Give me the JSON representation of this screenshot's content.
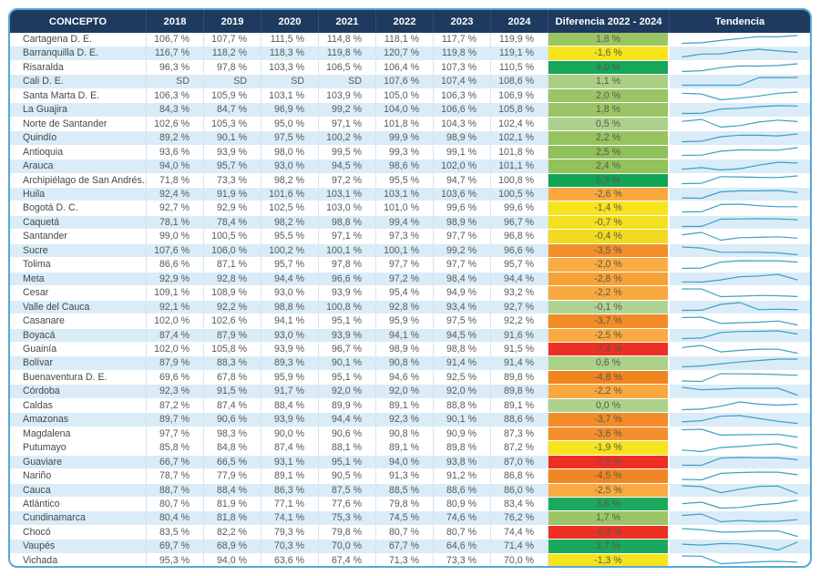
{
  "chart_data": {
    "type": "table",
    "title": "",
    "columns": [
      "CONCEPTO",
      "2018",
      "2019",
      "2020",
      "2021",
      "2022",
      "2023",
      "2024",
      "Diferencia 2022 - 2024",
      "Tendencia"
    ],
    "layout": {
      "header_bg": "#1e3a5f",
      "header_text": "#ffffff",
      "stripe_bg": "#d9ecf8",
      "border_color": "#57a7d6",
      "sparkline_color": "#3da0c2",
      "trend_note": "sparkline of 2018-2024 values per row"
    },
    "rows": [
      {
        "concepto": "Cartagena D. E.",
        "values": [
          "106,7 %",
          "107,7 %",
          "111,5 %",
          "114,8 %",
          "118,1 %",
          "117,7 %",
          "119,9 %"
        ],
        "diff": "1,8 %",
        "diff_color": "#9ac564"
      },
      {
        "concepto": "Barranquilla D. E.",
        "values": [
          "116,7 %",
          "118,2 %",
          "118,3 %",
          "119,8 %",
          "120,7 %",
          "119,8 %",
          "119,1 %"
        ],
        "diff": "-1,6 %",
        "diff_color": "#f6e41d"
      },
      {
        "concepto": "Risaralda",
        "values": [
          "96,3 %",
          "97,8 %",
          "103,3 %",
          "106,5 %",
          "106,4 %",
          "107,3 %",
          "110,5 %"
        ],
        "diff": "4,0 %",
        "diff_color": "#17a65a"
      },
      {
        "concepto": "Cali D. E.",
        "values": [
          "SD",
          "SD",
          "SD",
          "SD",
          "107,6 %",
          "107,4 %",
          "108,6 %"
        ],
        "diff": "1,1 %",
        "diff_color": "#a9d085"
      },
      {
        "concepto": "Santa Marta D. E.",
        "values": [
          "106,3 %",
          "105,9 %",
          "103,1 %",
          "103,9 %",
          "105,0 %",
          "106,3 %",
          "106,9 %"
        ],
        "diff": "2,0 %",
        "diff_color": "#9ac564"
      },
      {
        "concepto": "La Guajira",
        "values": [
          "84,3 %",
          "84,7 %",
          "96,9 %",
          "99,2 %",
          "104,0 %",
          "106,6 %",
          "105,8 %"
        ],
        "diff": "1,8 %",
        "diff_color": "#9ac564"
      },
      {
        "concepto": "Norte de Santander",
        "values": [
          "102,6 %",
          "105,3 %",
          "95,0 %",
          "97,1 %",
          "101,8 %",
          "104,3 %",
          "102,4 %"
        ],
        "diff": "0,5 %",
        "diff_color": "#add18c"
      },
      {
        "concepto": "Quindío",
        "values": [
          "89,2 %",
          "90,1 %",
          "97,5 %",
          "100,2 %",
          "99,9 %",
          "98,9 %",
          "102,1 %"
        ],
        "diff": "2,2 %",
        "diff_color": "#97c35f"
      },
      {
        "concepto": "Antioquia",
        "values": [
          "93,6 %",
          "93,9 %",
          "98,0 %",
          "99,5 %",
          "99,3 %",
          "99,1 %",
          "101,8 %"
        ],
        "diff": "2,5 %",
        "diff_color": "#90c059"
      },
      {
        "concepto": "Arauca",
        "values": [
          "94,0 %",
          "95,7 %",
          "93,0 %",
          "94,5 %",
          "98,6 %",
          "102,0 %",
          "101,1 %"
        ],
        "diff": "2,4 %",
        "diff_color": "#93c15c"
      },
      {
        "concepto": "Archipiélago de San Andrés...",
        "values": [
          "71,8 %",
          "73,3 %",
          "98,2 %",
          "97,2 %",
          "95,5 %",
          "94,7 %",
          "100,8 %"
        ],
        "diff": "5,3 %",
        "diff_color": "#12a457"
      },
      {
        "concepto": "Huila",
        "values": [
          "92,4 %",
          "91,9 %",
          "101,6 %",
          "103,1 %",
          "103,1 %",
          "103,6 %",
          "100,5 %"
        ],
        "diff": "-2,6 %",
        "diff_color": "#f9a93f"
      },
      {
        "concepto": "Bogotá D. C.",
        "values": [
          "92,7 %",
          "92,9 %",
          "102,5 %",
          "103,0 %",
          "101,0 %",
          "99,6 %",
          "99,6 %"
        ],
        "diff": "-1,4 %",
        "diff_color": "#f6e41d"
      },
      {
        "concepto": "Caquetá",
        "values": [
          "78,1 %",
          "78,4 %",
          "98,2 %",
          "98,8 %",
          "99,4 %",
          "98,9 %",
          "96,7 %"
        ],
        "diff": "-0,7 %",
        "diff_color": "#f4e01e"
      },
      {
        "concepto": "Santander",
        "values": [
          "99,0 %",
          "100,5 %",
          "95,5 %",
          "97,1 %",
          "97,3 %",
          "97,7 %",
          "96,8 %"
        ],
        "diff": "-0,4 %",
        "diff_color": "#f1da20"
      },
      {
        "concepto": "Sucre",
        "values": [
          "107,6 %",
          "106,0 %",
          "100,2 %",
          "100,1 %",
          "100,1 %",
          "99,2 %",
          "96,6 %"
        ],
        "diff": "-3,5 %",
        "diff_color": "#f28e2b"
      },
      {
        "concepto": "Tolima",
        "values": [
          "86,6 %",
          "87,1 %",
          "95,7 %",
          "97,8 %",
          "97,7 %",
          "97,7 %",
          "95,7 %"
        ],
        "diff": "-2,0 %",
        "diff_color": "#f9ac43"
      },
      {
        "concepto": "Meta",
        "values": [
          "92,9 %",
          "92,8 %",
          "94,4 %",
          "96,6 %",
          "97,2 %",
          "98,4 %",
          "94,4 %"
        ],
        "diff": "-2,8 %",
        "diff_color": "#f7a236"
      },
      {
        "concepto": "Cesar",
        "values": [
          "109,1 %",
          "108,9 %",
          "93,0 %",
          "93,9 %",
          "95,4 %",
          "94,9 %",
          "93,2 %"
        ],
        "diff": "-2,2 %",
        "diff_color": "#f9a93f"
      },
      {
        "concepto": "Valle del Cauca",
        "values": [
          "92,1 %",
          "92,2 %",
          "98,8 %",
          "100,8 %",
          "92,8 %",
          "93,4 %",
          "92,7 %"
        ],
        "diff": "-0,1 %",
        "diff_color": "#aed393"
      },
      {
        "concepto": "Casanare",
        "values": [
          "102,0 %",
          "102,6 %",
          "94,1 %",
          "95,1 %",
          "95,9 %",
          "97,5 %",
          "92,2 %"
        ],
        "diff": "-3,7 %",
        "diff_color": "#f38c28"
      },
      {
        "concepto": "Boyacá",
        "values": [
          "87,4 %",
          "87,9 %",
          "93,0 %",
          "93,9 %",
          "94,1 %",
          "94,5 %",
          "91,6 %"
        ],
        "diff": "-2,5 %",
        "diff_color": "#f9aa41"
      },
      {
        "concepto": "Guainía",
        "values": [
          "102,0 %",
          "105,8 %",
          "93,9 %",
          "96,7 %",
          "98,9 %",
          "98,8 %",
          "91,5 %"
        ],
        "diff": "-7,4 %",
        "diff_color": "#ee2f24"
      },
      {
        "concepto": "Bolívar",
        "values": [
          "87,9 %",
          "88,3 %",
          "89,3 %",
          "90,1 %",
          "90,8 %",
          "91,4 %",
          "91,4 %"
        ],
        "diff": "0,6 %",
        "diff_color": "#abd089"
      },
      {
        "concepto": "Buenaventura D. E.",
        "values": [
          "69,6 %",
          "67,8 %",
          "95,9 %",
          "95,1 %",
          "94,6 %",
          "92,5 %",
          "89,8 %"
        ],
        "diff": "-4,8 %",
        "diff_color": "#f0851f"
      },
      {
        "concepto": "Córdoba",
        "values": [
          "92,3 %",
          "91,5 %",
          "91,7 %",
          "92,0 %",
          "92,0 %",
          "92,0 %",
          "89,8 %"
        ],
        "diff": "-2,2 %",
        "diff_color": "#f9a93f"
      },
      {
        "concepto": "Caldas",
        "values": [
          "87,2 %",
          "87,4 %",
          "88,4 %",
          "89,9 %",
          "89,1 %",
          "88,8 %",
          "89,1 %"
        ],
        "diff": "0,0 %",
        "diff_color": "#acd28e"
      },
      {
        "concepto": "Amazonas",
        "values": [
          "89,7 %",
          "90,6 %",
          "93,9 %",
          "94,4 %",
          "92,3 %",
          "90,1 %",
          "88,6 %"
        ],
        "diff": "-3,7 %",
        "diff_color": "#f38c28"
      },
      {
        "concepto": "Magdalena",
        "values": [
          "97,7 %",
          "98,3 %",
          "90,0 %",
          "90,6 %",
          "90,8 %",
          "90,9 %",
          "87,3 %"
        ],
        "diff": "-3,6 %",
        "diff_color": "#f48f2c"
      },
      {
        "concepto": "Putumayo",
        "values": [
          "85,8 %",
          "84,8 %",
          "87,4 %",
          "88,1 %",
          "89,1 %",
          "89,8 %",
          "87,2 %"
        ],
        "diff": "-1,9 %",
        "diff_color": "#f6e41d"
      },
      {
        "concepto": "Guaviare",
        "values": [
          "66,7 %",
          "66,5 %",
          "93,1 %",
          "95,1 %",
          "94,0 %",
          "93,8 %",
          "87,0 %"
        ],
        "diff": "-7,0 %",
        "diff_color": "#ee2f24"
      },
      {
        "concepto": "Nariño",
        "values": [
          "78,7 %",
          "77,9 %",
          "89,1 %",
          "90,5 %",
          "91,3 %",
          "91,2 %",
          "86,8 %"
        ],
        "diff": "-4,5 %",
        "diff_color": "#f18722"
      },
      {
        "concepto": "Cauca",
        "values": [
          "88,7 %",
          "88,4 %",
          "86,3 %",
          "87,5 %",
          "88,5 %",
          "88,6 %",
          "86,0 %"
        ],
        "diff": "-2,5 %",
        "diff_color": "#f9aa41"
      },
      {
        "concepto": "Atlántico",
        "values": [
          "80,7 %",
          "81,9 %",
          "77,1 %",
          "77,6 %",
          "79,8 %",
          "80,9 %",
          "83,4 %"
        ],
        "diff": "3,6 %",
        "diff_color": "#1ca95e"
      },
      {
        "concepto": "Cundinamarca",
        "values": [
          "80,4 %",
          "81,8 %",
          "74,1 %",
          "75,3 %",
          "74,5 %",
          "74,6 %",
          "76,2 %"
        ],
        "diff": "1,7 %",
        "diff_color": "#9cc666"
      },
      {
        "concepto": "Chocó",
        "values": [
          "83,5 %",
          "82,2 %",
          "79,3 %",
          "79,8 %",
          "80,7 %",
          "80,7 %",
          "74,4 %"
        ],
        "diff": "-6,3 %",
        "diff_color": "#ee2f24"
      },
      {
        "concepto": "Vaupés",
        "values": [
          "69,7 %",
          "68,9 %",
          "70,3 %",
          "70,0 %",
          "67,7 %",
          "64,6 %",
          "71,4 %"
        ],
        "diff": "3,7 %",
        "diff_color": "#1aa85c"
      },
      {
        "concepto": "Vichada",
        "values": [
          "95,3 %",
          "94,0 %",
          "63,6 %",
          "67,4 %",
          "71,3 %",
          "73,3 %",
          "70,0 %"
        ],
        "diff": "-1,3 %",
        "diff_color": "#f6e41d"
      }
    ]
  }
}
